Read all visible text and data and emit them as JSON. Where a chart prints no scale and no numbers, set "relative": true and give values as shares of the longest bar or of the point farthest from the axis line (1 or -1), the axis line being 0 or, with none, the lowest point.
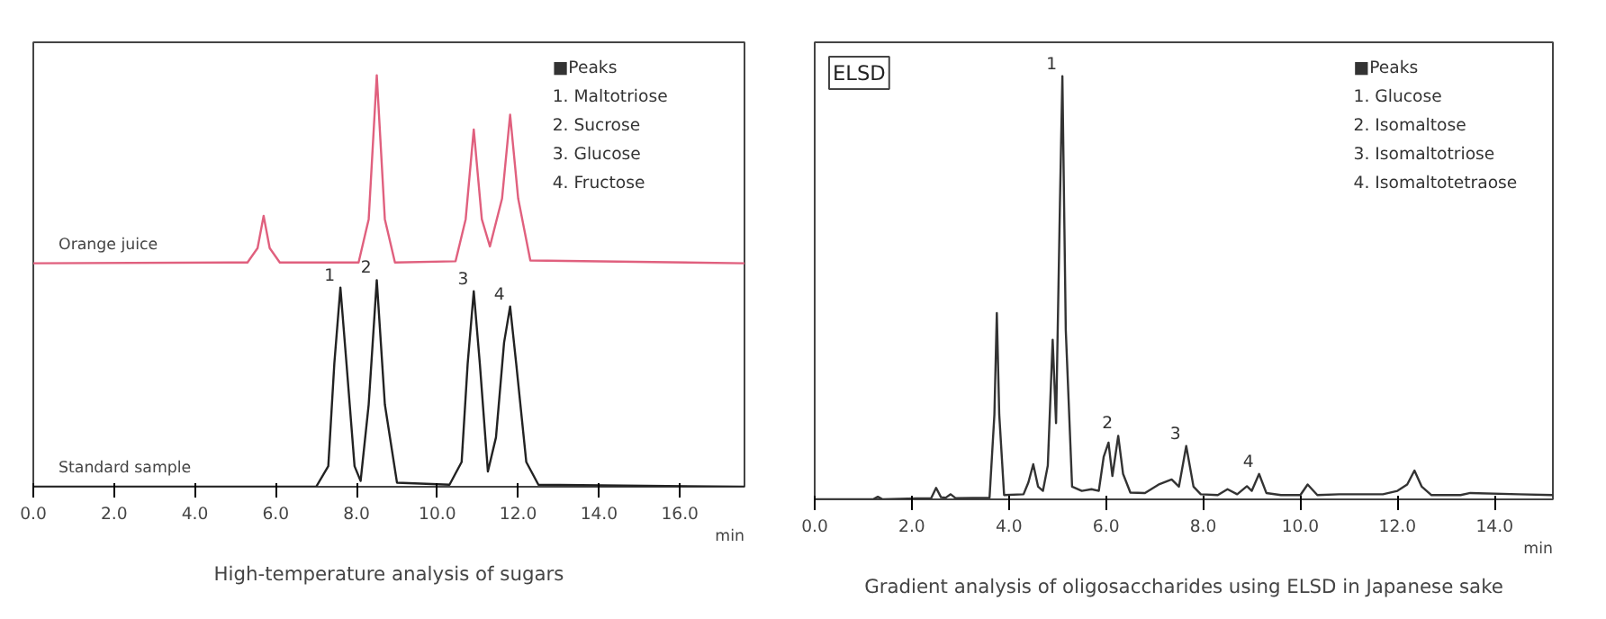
{
  "chart_data": [
    {
      "type": "line",
      "title": "High-temperature analysis of sugars",
      "xlabel": "min",
      "relative": true,
      "xlim": [
        0,
        17.6
      ],
      "xticks": [
        {
          "value": 0,
          "label": "0.0"
        },
        {
          "value": 2,
          "label": "2.0"
        },
        {
          "value": 4,
          "label": "4.0"
        },
        {
          "value": 6,
          "label": "6.0"
        },
        {
          "value": 8,
          "label": "8.0"
        },
        {
          "value": 10,
          "label": "10.0"
        },
        {
          "value": 12,
          "label": "12.0"
        },
        {
          "value": 14,
          "label": "14.0"
        },
        {
          "value": 16,
          "label": "16.0"
        }
      ],
      "grid": false,
      "legend": false,
      "marker": "none",
      "line_style": "solid",
      "series": [
        {
          "name": "Orange juice",
          "color": "#e0607e",
          "x": [
            0,
            5.3,
            5.55,
            5.7,
            5.85,
            6.1,
            8.05,
            8.3,
            8.5,
            8.7,
            8.95,
            10.45,
            10.7,
            10.9,
            11.1,
            11.3,
            11.6,
            11.8,
            12.0,
            12.3,
            17.6
          ],
          "values": [
            0.543,
            0.545,
            0.58,
            0.658,
            0.58,
            0.545,
            0.545,
            0.65,
            1.0,
            0.65,
            0.545,
            0.548,
            0.65,
            0.868,
            0.65,
            0.584,
            0.7,
            0.904,
            0.7,
            0.55,
            0.543
          ]
        },
        {
          "name": "Standard sample",
          "color": "#222222",
          "x": [
            0,
            7.0,
            7.3,
            7.45,
            7.6,
            7.75,
            7.95,
            8.1,
            8.3,
            8.5,
            8.7,
            9.0,
            10.3,
            10.6,
            10.75,
            10.9,
            11.05,
            11.25,
            11.45,
            11.65,
            11.8,
            11.95,
            12.2,
            12.5,
            17.6
          ],
          "values": [
            0,
            0,
            0.05,
            0.3,
            0.484,
            0.3,
            0.05,
            0.014,
            0.2,
            0.502,
            0.2,
            0.01,
            0.005,
            0.06,
            0.3,
            0.475,
            0.3,
            0.037,
            0.12,
            0.35,
            0.438,
            0.3,
            0.06,
            0.005,
            0
          ]
        }
      ],
      "annotations": [
        "■Peaks",
        "1.   Maltotriose",
        "2.   Sucrose",
        "3.   Glucose",
        "4.   Fructose",
        {
          "text": "1",
          "x": 7.6,
          "y": 0.484
        },
        {
          "text": "2",
          "x": 8.5,
          "y": 0.502
        },
        {
          "text": "3",
          "x": 10.9,
          "y": 0.475
        },
        {
          "text": "4",
          "x": 11.8,
          "y": 0.438
        }
      ]
    },
    {
      "type": "line",
      "title": "Gradient analysis of oligosaccharides using ELSD in Japanese sake",
      "subtitle": "ELSD",
      "xlabel": "min",
      "relative": true,
      "xlim": [
        0,
        15.2
      ],
      "xticks": [
        {
          "value": 0,
          "label": "0.0"
        },
        {
          "value": 2,
          "label": "2.0"
        },
        {
          "value": 4,
          "label": "4.0"
        },
        {
          "value": 6,
          "label": "6.0"
        },
        {
          "value": 8,
          "label": "8.0"
        },
        {
          "value": 10,
          "label": "10.0"
        },
        {
          "value": 12,
          "label": "12.0"
        },
        {
          "value": 14,
          "label": "14.0"
        }
      ],
      "grid": false,
      "legend": false,
      "marker": "none",
      "line_style": "solid",
      "series": [
        {
          "color": "#333333",
          "x": [
            0,
            1.2,
            1.3,
            1.4,
            2.4,
            2.5,
            2.6,
            2.7,
            2.8,
            2.9,
            3.6,
            3.7,
            3.75,
            3.8,
            3.9,
            4.3,
            4.4,
            4.5,
            4.6,
            4.7,
            4.8,
            4.9,
            4.97,
            5.05,
            5.1,
            5.17,
            5.3,
            5.5,
            5.7,
            5.85,
            5.95,
            6.05,
            6.13,
            6.25,
            6.35,
            6.5,
            6.8,
            7.1,
            7.35,
            7.5,
            7.65,
            7.8,
            7.95,
            8.3,
            8.5,
            8.7,
            8.9,
            9.0,
            9.15,
            9.3,
            9.6,
            10.0,
            10.15,
            10.35,
            10.8,
            11.7,
            12.0,
            12.2,
            12.35,
            12.5,
            12.7,
            13.3,
            13.5,
            14.5,
            15.2
          ],
          "values": [
            0,
            0,
            0.006,
            0,
            0.003,
            0.027,
            0.005,
            0.004,
            0.012,
            0.003,
            0.004,
            0.2,
            0.44,
            0.2,
            0.01,
            0.012,
            0.04,
            0.083,
            0.03,
            0.02,
            0.08,
            0.377,
            0.18,
            0.7,
            1.0,
            0.4,
            0.03,
            0.02,
            0.024,
            0.02,
            0.1,
            0.134,
            0.055,
            0.15,
            0.06,
            0.016,
            0.015,
            0.036,
            0.047,
            0.03,
            0.126,
            0.03,
            0.012,
            0.01,
            0.024,
            0.012,
            0.031,
            0.02,
            0.06,
            0.015,
            0.01,
            0.01,
            0.035,
            0.01,
            0.012,
            0.012,
            0.02,
            0.035,
            0.068,
            0.03,
            0.01,
            0.01,
            0.015,
            0.012,
            0.01
          ]
        }
      ],
      "annotations": [
        "■Peaks",
        "1.   Glucose",
        "2.   Isomaltose",
        "3.   Isomaltotriose",
        "4.   Isomaltotetraose",
        {
          "text": "1",
          "x": 5.1,
          "y": 1.0
        },
        {
          "text": "2",
          "x": 6.25,
          "y": 0.15
        },
        {
          "text": "3",
          "x": 7.65,
          "y": 0.126
        },
        {
          "text": "4",
          "x": 9.15,
          "y": 0.06
        }
      ]
    }
  ]
}
